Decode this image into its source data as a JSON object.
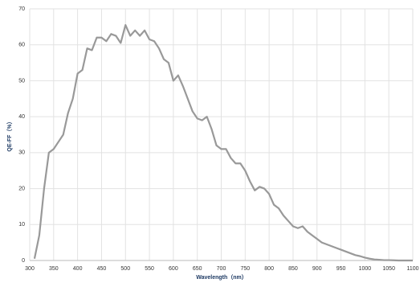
{
  "chart_data": {
    "type": "line",
    "xlabel": "Wavelength（nm）",
    "ylabel": "QE-FF（%）",
    "x": [
      310,
      320,
      330,
      340,
      350,
      360,
      370,
      380,
      390,
      400,
      410,
      420,
      430,
      440,
      450,
      460,
      470,
      480,
      490,
      500,
      510,
      520,
      530,
      540,
      550,
      560,
      570,
      580,
      590,
      600,
      610,
      620,
      630,
      640,
      650,
      660,
      670,
      680,
      690,
      700,
      710,
      720,
      730,
      740,
      750,
      760,
      770,
      780,
      790,
      800,
      810,
      820,
      830,
      840,
      850,
      860,
      870,
      880,
      890,
      900,
      910,
      920,
      930,
      940,
      950,
      960,
      970,
      980,
      990,
      1000,
      1010,
      1020,
      1030,
      1040,
      1050,
      1060,
      1070,
      1080,
      1090,
      1100
    ],
    "series": [
      {
        "color": "#999999",
        "values": [
          0.5,
          7,
          20,
          30,
          31,
          33,
          35,
          41,
          45,
          52,
          53,
          59,
          58.5,
          62,
          62,
          61,
          63,
          62.5,
          60.5,
          65.5,
          62.5,
          64,
          62.5,
          64,
          61.5,
          61,
          59,
          56,
          55,
          50,
          51.5,
          48.5,
          45,
          41.5,
          39.5,
          39,
          40,
          36.5,
          32,
          31,
          31,
          28.5,
          27,
          27,
          25,
          22,
          19.5,
          20.5,
          20,
          18.5,
          15.5,
          14.5,
          12.5,
          11,
          9.5,
          9,
          9.5,
          8,
          7,
          6,
          5,
          4.5,
          4,
          3.5,
          3,
          2.5,
          2,
          1.5,
          1.2,
          0.8,
          0.5,
          0.3,
          0.2,
          0.1,
          0.1,
          0.05,
          0,
          0,
          0,
          0
        ]
      }
    ],
    "xlim": [
      300,
      1100
    ],
    "xticks": [
      300,
      350,
      400,
      450,
      500,
      550,
      600,
      650,
      700,
      750,
      800,
      850,
      900,
      950,
      1000,
      1050,
      1100
    ],
    "ylim": [
      0,
      70
    ],
    "yticks": [
      0,
      10,
      20,
      30,
      40,
      50,
      60,
      70
    ],
    "grid": true
  }
}
